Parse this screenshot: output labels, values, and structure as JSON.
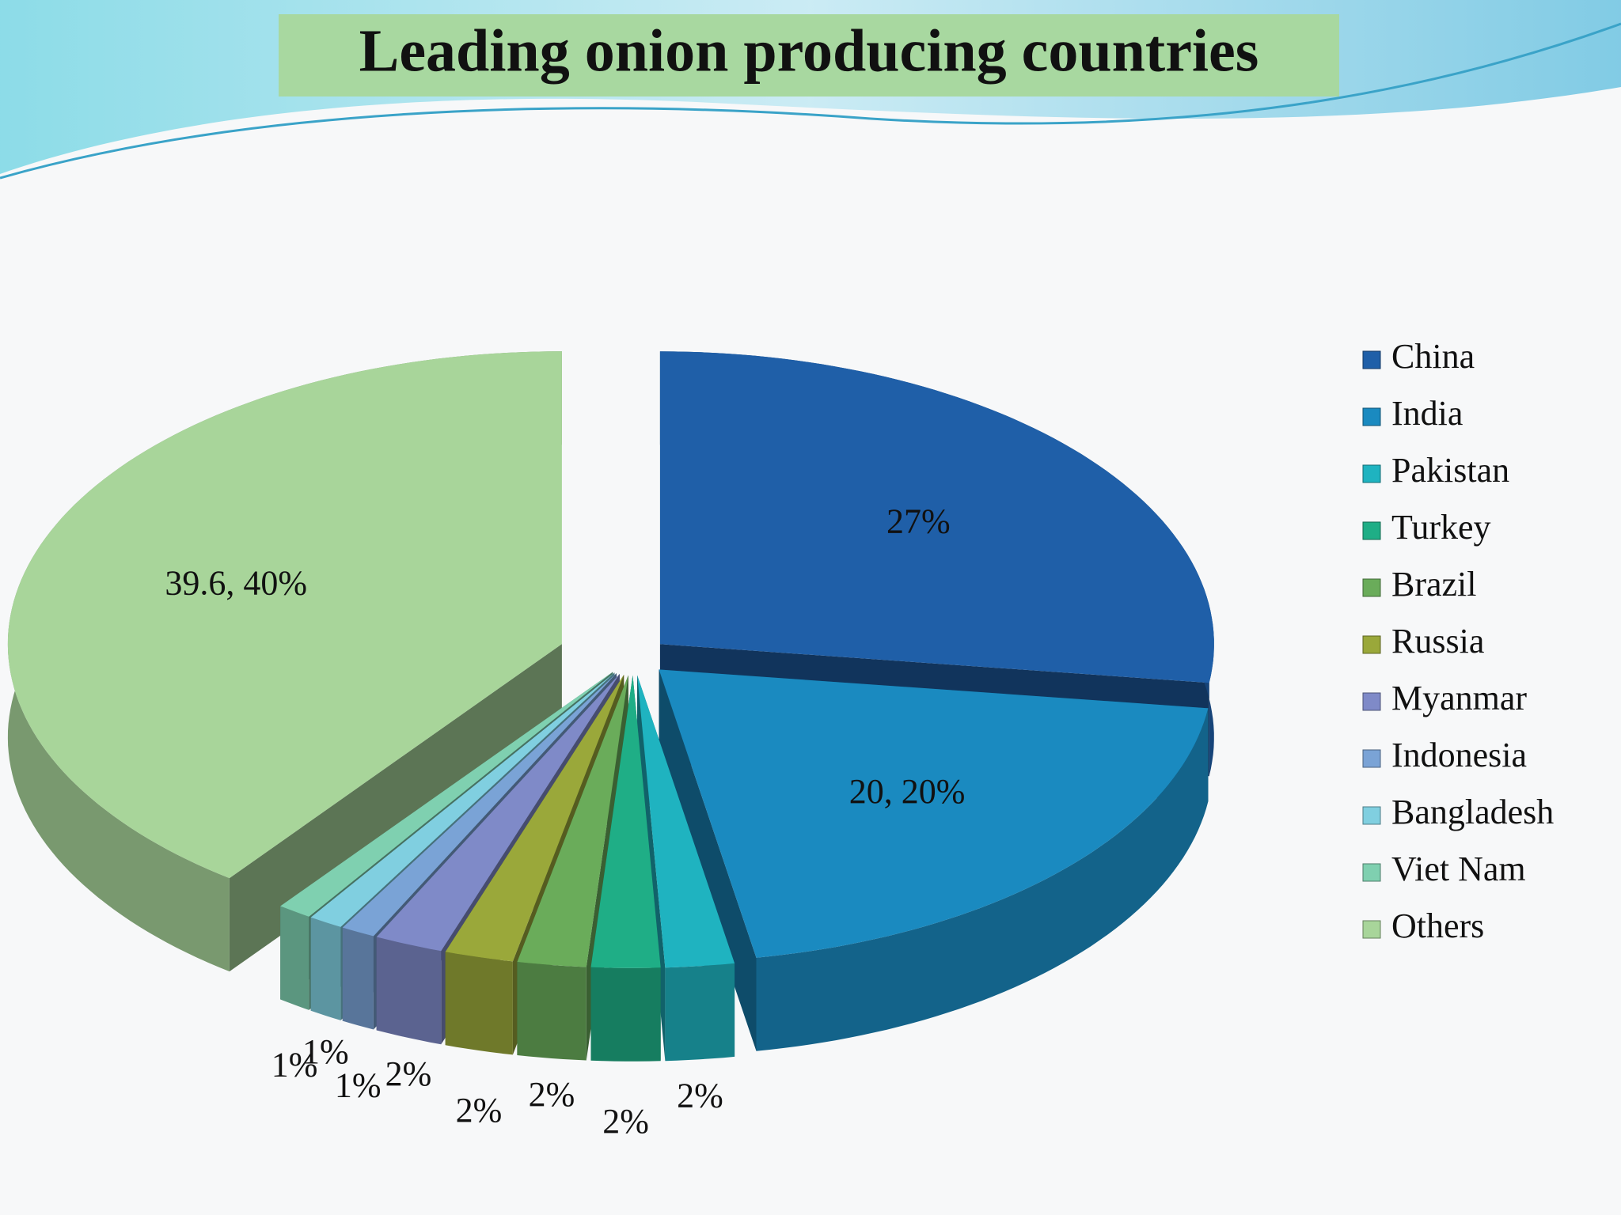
{
  "chart_data": {
    "type": "pie",
    "title": "Leading onion producing countries",
    "categories": [
      "China",
      "India",
      "Pakistan",
      "Turkey",
      "Brazil",
      "Russia",
      "Myanmar",
      "Indonesia",
      "Bangladesh",
      "Viet Nam",
      "Others"
    ],
    "values": [
      27,
      20,
      2,
      2,
      2,
      2,
      2,
      1,
      1,
      1,
      39.6
    ],
    "value_labels": [
      "27%",
      "20, 20%",
      "2%",
      "2%",
      "2%",
      "2%",
      "2%",
      "1%",
      "1%",
      "1%",
      "39.6, 40%"
    ],
    "colors": [
      "#1f5fa8",
      "#1a8ac0",
      "#1fb3c0",
      "#1fae86",
      "#6aac5a",
      "#9aa83a",
      "#7f8ac8",
      "#7aa3d6",
      "#80cfe0",
      "#7fd0b0",
      "#a8d59a"
    ],
    "legend": "right"
  }
}
